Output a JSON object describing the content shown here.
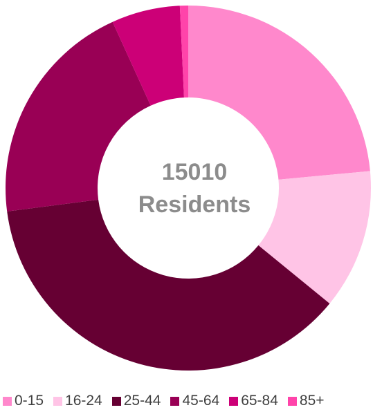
{
  "chart_data": {
    "type": "pie",
    "donut": true,
    "center_value": "15010",
    "center_caption": "Residents",
    "categories": [
      "0-15",
      "16-24",
      "25-44",
      "45-64",
      "65-84",
      "85+"
    ],
    "values": [
      3530,
      1860,
      5560,
      3040,
      910,
      110
    ],
    "colors": [
      "#ff88cc",
      "#ffc4e6",
      "#660033",
      "#990055",
      "#cc0077",
      "#ff44aa"
    ],
    "legend_position": "bottom"
  }
}
